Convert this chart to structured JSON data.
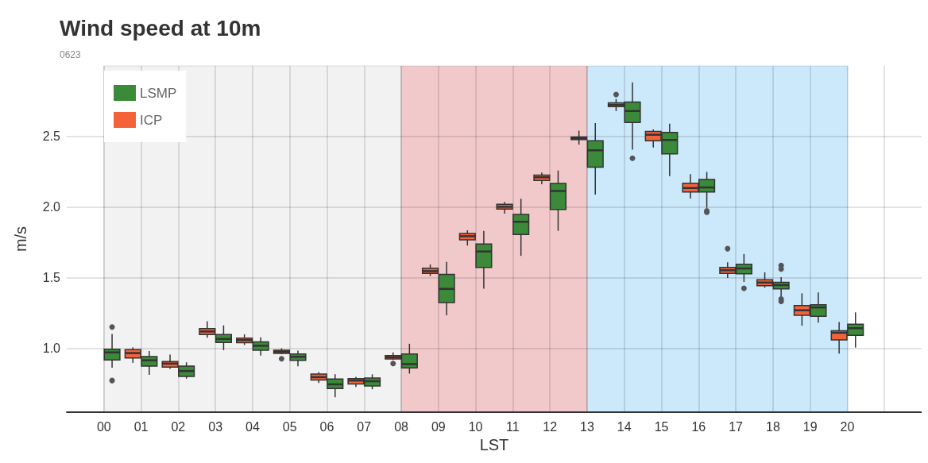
{
  "chart_data": {
    "type": "box",
    "title": "Wind speed at 10m",
    "subtitle": "0623",
    "xlabel": "LST",
    "ylabel": "m/s",
    "categories": [
      "00",
      "01",
      "02",
      "03",
      "04",
      "05",
      "06",
      "07",
      "08",
      "09",
      "10",
      "11",
      "12",
      "13",
      "14",
      "15",
      "16",
      "17",
      "18",
      "19",
      "20"
    ],
    "ylim": [
      0.55,
      3.0
    ],
    "yticks": [
      {
        "value": 1.0,
        "label": "1.0"
      },
      1.5,
      {
        "value": 2.0,
        "label": "2.0"
      },
      2.5
    ],
    "grid": true,
    "legend": "top left",
    "bands": [
      {
        "axis": "x",
        "from": "00",
        "to": "08",
        "color": "#f2f2f2"
      },
      {
        "axis": "x",
        "from": "08",
        "to": "13",
        "color": "#f2c9ca"
      },
      {
        "axis": "x",
        "from": "13",
        "to": "20",
        "color": "#cce8fb"
      }
    ],
    "series": [
      {
        "name": "ICP",
        "color": "#f4623a",
        "boxes": [
          null,
          {
            "low": 0.899,
            "q1": 0.933,
            "median": 0.968,
            "q3": 0.993,
            "high": 1.009
          },
          {
            "low": 0.856,
            "q1": 0.869,
            "median": 0.894,
            "q3": 0.908,
            "high": 0.957
          },
          {
            "low": 1.077,
            "q1": 1.099,
            "median": 1.121,
            "q3": 1.142,
            "high": 1.193
          },
          {
            "low": 1.025,
            "q1": 1.042,
            "median": 1.06,
            "q3": 1.074,
            "high": 1.101
          },
          {
            "low": 0.96,
            "q1": 0.966,
            "median": 0.978,
            "q3": 0.989,
            "high": 1.002,
            "outliers": [
              0.928
            ]
          },
          {
            "low": 0.757,
            "q1": 0.777,
            "median": 0.798,
            "q3": 0.82,
            "high": 0.834
          },
          {
            "low": 0.728,
            "q1": 0.749,
            "median": 0.774,
            "q3": 0.787,
            "high": 0.8
          },
          {
            "low": 0.92,
            "q1": 0.926,
            "median": 0.939,
            "q3": 0.951,
            "high": 0.973,
            "outliers": [
              0.894
            ]
          },
          {
            "low": 1.514,
            "q1": 1.532,
            "median": 1.548,
            "q3": 1.568,
            "high": 1.595
          },
          {
            "low": 1.729,
            "q1": 1.77,
            "median": 1.795,
            "q3": 1.815,
            "high": 1.837
          },
          {
            "low": 1.955,
            "q1": 1.987,
            "median": 2.003,
            "q3": 2.021,
            "high": 2.038
          },
          {
            "low": 2.163,
            "q1": 2.19,
            "median": 2.212,
            "q3": 2.228,
            "high": 2.245
          },
          {
            "low": 2.443,
            "q1": 2.479,
            "median": 2.49,
            "q3": 2.497,
            "high": 2.542
          },
          {
            "low": 2.681,
            "q1": 2.712,
            "median": 2.724,
            "q3": 2.739,
            "high": 2.766,
            "outliers": [
              2.798
            ]
          },
          {
            "low": 2.423,
            "q1": 2.47,
            "median": 2.513,
            "q3": 2.537,
            "high": 2.551
          },
          {
            "low": 2.062,
            "q1": 2.108,
            "median": 2.136,
            "q3": 2.17,
            "high": 2.235
          },
          {
            "low": 1.5,
            "q1": 1.532,
            "median": 1.554,
            "q3": 1.574,
            "high": 1.61,
            "outliers": [
              1.707
            ]
          },
          {
            "low": 1.431,
            "q1": 1.445,
            "median": 1.467,
            "q3": 1.487,
            "high": 1.54
          },
          {
            "low": 1.162,
            "q1": 1.236,
            "median": 1.271,
            "q3": 1.305,
            "high": 1.391
          },
          {
            "low": 0.964,
            "q1": 1.061,
            "median": 1.112,
            "q3": 1.126,
            "high": 1.188
          }
        ]
      },
      {
        "name": "LSMP",
        "color": "#3a8a3a",
        "boxes": [
          {
            "low": 0.865,
            "q1": 0.919,
            "median": 0.973,
            "q3": 0.996,
            "high": 1.103,
            "outliers": [
              1.153,
              0.774
            ]
          },
          {
            "low": 0.814,
            "q1": 0.876,
            "median": 0.917,
            "q3": 0.944,
            "high": 0.982
          },
          {
            "low": 0.787,
            "q1": 0.803,
            "median": 0.841,
            "q3": 0.876,
            "high": 0.903
          },
          {
            "low": 0.989,
            "q1": 1.043,
            "median": 1.068,
            "q3": 1.099,
            "high": 1.164
          },
          {
            "low": 0.95,
            "q1": 0.989,
            "median": 1.02,
            "q3": 1.047,
            "high": 1.079
          },
          {
            "low": 0.874,
            "q1": 0.917,
            "median": 0.942,
            "q3": 0.962,
            "high": 0.985
          },
          {
            "low": 0.655,
            "q1": 0.717,
            "median": 0.747,
            "q3": 0.784,
            "high": 0.818
          },
          {
            "low": 0.712,
            "q1": 0.736,
            "median": 0.769,
            "q3": 0.791,
            "high": 0.818
          },
          {
            "low": 0.823,
            "q1": 0.863,
            "median": 0.89,
            "q3": 0.962,
            "high": 1.034
          },
          {
            "low": 1.236,
            "q1": 1.325,
            "median": 1.422,
            "q3": 1.525,
            "high": 1.613
          },
          {
            "low": 1.424,
            "q1": 1.574,
            "median": 1.687,
            "q3": 1.74,
            "high": 1.832
          },
          {
            "low": 1.656,
            "q1": 1.808,
            "median": 1.897,
            "q3": 1.949,
            "high": 2.06
          },
          {
            "low": 1.833,
            "q1": 1.985,
            "median": 2.115,
            "q3": 2.169,
            "high": 2.26
          },
          {
            "low": 2.089,
            "q1": 2.284,
            "median": 2.403,
            "q3": 2.47,
            "high": 2.596
          },
          {
            "low": 2.407,
            "q1": 2.6,
            "median": 2.681,
            "q3": 2.745,
            "high": 2.883,
            "outliers": [
              2.347
            ]
          },
          {
            "low": 2.221,
            "q1": 2.378,
            "median": 2.476,
            "q3": 2.53,
            "high": 2.591
          },
          {
            "low": 1.996,
            "q1": 2.108,
            "median": 2.14,
            "q3": 2.197,
            "high": 2.25,
            "outliers": [
              1.974,
              1.965
            ]
          },
          {
            "low": 1.472,
            "q1": 1.529,
            "median": 1.567,
            "q3": 1.597,
            "high": 1.669,
            "outliers": [
              1.427
            ]
          },
          {
            "low": 1.364,
            "q1": 1.422,
            "median": 1.449,
            "q3": 1.469,
            "high": 1.505,
            "outliers": [
              1.588,
              1.563,
              1.35,
              1.334
            ]
          },
          {
            "low": 1.184,
            "q1": 1.229,
            "median": 1.291,
            "q3": 1.31,
            "high": 1.397
          },
          {
            "low": 1.007,
            "q1": 1.094,
            "median": 1.144,
            "q3": 1.172,
            "high": 1.256
          }
        ]
      }
    ]
  }
}
